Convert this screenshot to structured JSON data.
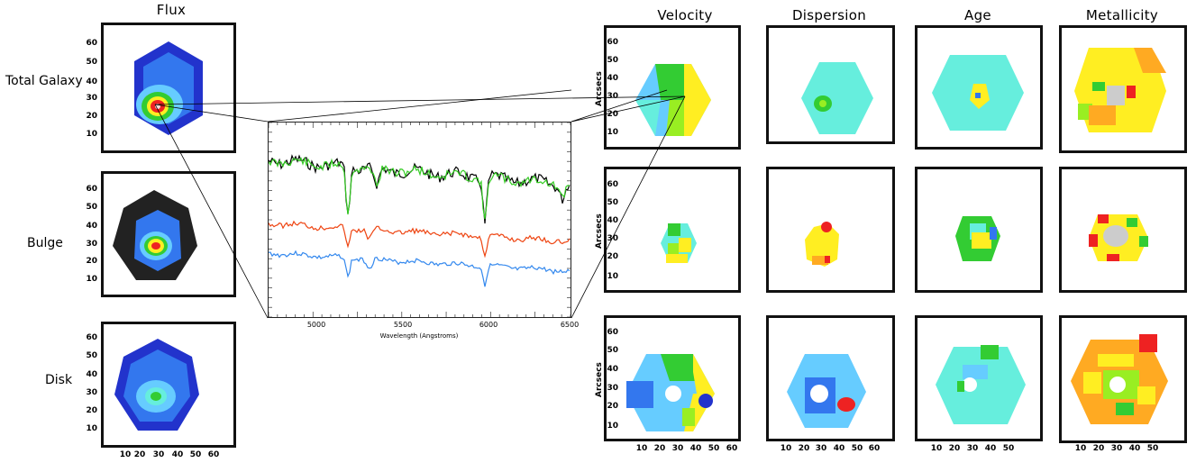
{
  "columns": {
    "flux": "Flux",
    "velocity": "Velocity",
    "dispersion": "Dispersion",
    "age": "Age",
    "metallicity": "Metallicity"
  },
  "rows": {
    "total": "Total Galaxy",
    "bulge": "Bulge",
    "disk": "Disk"
  },
  "axis": {
    "ylabel": "Arcsecs",
    "flux_y_ticks": [
      "60",
      "50",
      "40",
      "30",
      "20",
      "10"
    ],
    "flux_x_ticks": [
      "10",
      "20",
      "30",
      "40",
      "50",
      "60"
    ],
    "map_y_ticks": [
      "60",
      "50",
      "40",
      "30",
      "20",
      "10"
    ],
    "map_x_ticks_6": [
      "10",
      "20",
      "30",
      "40",
      "50",
      "60"
    ],
    "map_x_ticks_5": [
      "10",
      "20",
      "30",
      "40",
      "50"
    ]
  },
  "spectrum": {
    "x_ticks": [
      "5000",
      "5500",
      "6000",
      "6500"
    ],
    "x_label": "Wavelength (Angstroms)",
    "colors": {
      "observed": "#000000",
      "model_total": "#33cc22",
      "bulge": "#ee4411",
      "disk": "#3388ee"
    }
  },
  "colors": {
    "dark_blue": "#2233cc",
    "blue": "#3377ee",
    "light_blue": "#66ccff",
    "cyan": "#66eedd",
    "green": "#33cc33",
    "lime": "#99ee22",
    "yellow": "#ffee22",
    "orange": "#ffaa22",
    "red": "#ee2222",
    "pink": "#ff7799",
    "grey": "#cccccc",
    "black": "#222222"
  }
}
